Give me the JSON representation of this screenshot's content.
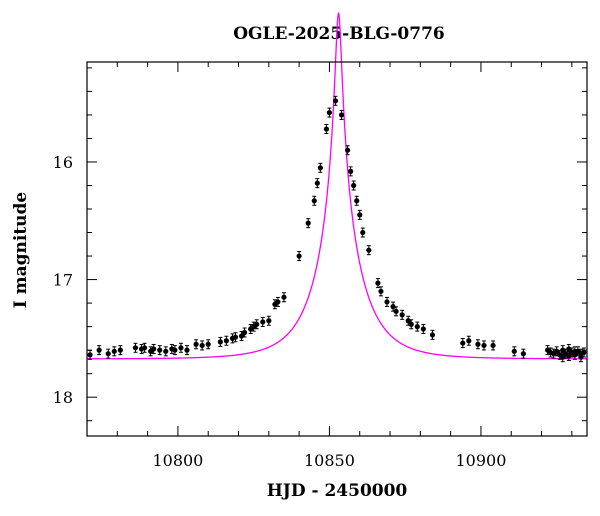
{
  "chart_data": {
    "type": "scatter",
    "title": "OGLE-2025-BLG-0776",
    "xlabel": "HJD - 2450000",
    "ylabel": "I magnitude",
    "xlim": [
      10770,
      10935
    ],
    "ylim": [
      18.33,
      15.15
    ],
    "y_inverted": true,
    "x_ticks": [
      10800,
      10850,
      10900
    ],
    "y_ticks": [
      16,
      17,
      18
    ],
    "grid": false,
    "model_color": "#ff00ff",
    "point_color": "#000000",
    "model": {
      "t0": 10853.0,
      "u0": 0.0665,
      "tE": 13.6,
      "I_base": 17.675,
      "dt_step": 0.25
    },
    "series": [
      {
        "points": [
          [
            10771,
            17.64
          ],
          [
            10774,
            17.6
          ],
          [
            10777,
            17.63
          ],
          [
            10779,
            17.61
          ],
          [
            10781,
            17.6
          ],
          [
            10786,
            17.58
          ],
          [
            10788,
            17.59
          ],
          [
            10789,
            17.58
          ],
          [
            10791,
            17.61
          ],
          [
            10792,
            17.59
          ],
          [
            10794,
            17.6
          ],
          [
            10796,
            17.61
          ],
          [
            10798,
            17.59
          ],
          [
            10799,
            17.6
          ],
          [
            10801,
            17.58
          ],
          [
            10803,
            17.6
          ],
          [
            10806,
            17.55
          ],
          [
            10808,
            17.56
          ],
          [
            10810,
            17.55
          ],
          [
            10814,
            17.53
          ],
          [
            10816,
            17.52
          ],
          [
            10818,
            17.5
          ],
          [
            10819,
            17.49
          ],
          [
            10821,
            17.48
          ],
          [
            10822,
            17.45
          ],
          [
            10824,
            17.42
          ],
          [
            10825,
            17.4
          ],
          [
            10826,
            17.38
          ],
          [
            10828,
            17.36
          ],
          [
            10830,
            17.35
          ],
          [
            10832,
            17.21
          ],
          [
            10833,
            17.19
          ],
          [
            10835,
            17.15
          ],
          [
            10840,
            16.8
          ],
          [
            10843,
            16.52
          ],
          [
            10845,
            16.33
          ],
          [
            10846,
            16.18
          ],
          [
            10847,
            16.05
          ],
          [
            10849,
            15.72
          ],
          [
            10850,
            15.58
          ],
          [
            10852,
            15.48
          ],
          [
            10854,
            15.6
          ],
          [
            10856,
            15.9
          ],
          [
            10857,
            16.08
          ],
          [
            10858,
            16.2
          ],
          [
            10859,
            16.33
          ],
          [
            10860,
            16.45
          ],
          [
            10861,
            16.6
          ],
          [
            10863,
            16.75
          ],
          [
            10866,
            17.03
          ],
          [
            10867,
            17.1
          ],
          [
            10869,
            17.19
          ],
          [
            10871,
            17.23
          ],
          [
            10872,
            17.27
          ],
          [
            10874,
            17.3
          ],
          [
            10876,
            17.35
          ],
          [
            10877,
            17.38
          ],
          [
            10879,
            17.4
          ],
          [
            10881,
            17.42
          ],
          [
            10884,
            17.47
          ],
          [
            10894,
            17.54
          ],
          [
            10896,
            17.52
          ],
          [
            10899,
            17.55
          ],
          [
            10901,
            17.56
          ],
          [
            10904,
            17.56
          ],
          [
            10911,
            17.61
          ],
          [
            10914,
            17.63
          ],
          [
            10922,
            17.6
          ],
          [
            10923,
            17.62
          ],
          [
            10924,
            17.63
          ],
          [
            10925,
            17.61
          ],
          [
            10926,
            17.64
          ],
          [
            10927,
            17.6
          ],
          [
            10928,
            17.63
          ],
          [
            10929,
            17.65
          ],
          [
            10930,
            17.62
          ],
          [
            10931,
            17.64
          ],
          [
            10932,
            17.61
          ],
          [
            10933,
            17.63
          ],
          [
            10934,
            17.62
          ],
          [
            10927,
            17.66
          ],
          [
            10929,
            17.59
          ],
          [
            10931,
            17.61
          ],
          [
            10933,
            17.66
          ]
        ]
      }
    ]
  }
}
